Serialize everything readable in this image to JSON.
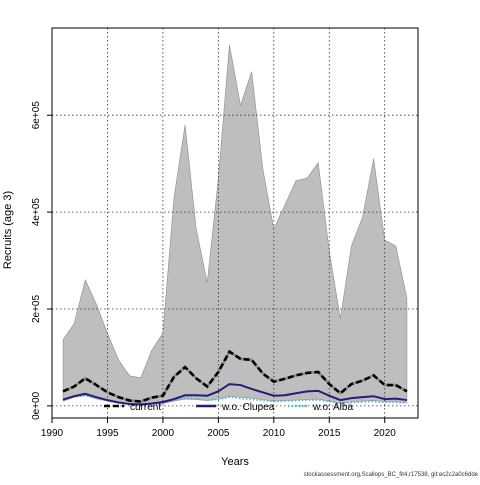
{
  "chart_data": {
    "type": "area",
    "xlabel": "Years",
    "ylabel": "Recruits (age 3)",
    "xlim": [
      1990,
      2023
    ],
    "ylim": [
      -25000,
      780000
    ],
    "x_ticks": [
      1990,
      1995,
      2000,
      2005,
      2010,
      2015,
      2020
    ],
    "y_ticks": [
      0,
      200000,
      400000,
      600000
    ],
    "y_tick_labels": [
      "0e+00",
      "2e+05",
      "4e+05",
      "6e+05"
    ],
    "grid": true,
    "grid_style": "dotted",
    "legend_position": "bottom-center",
    "x": [
      1991,
      1992,
      1993,
      1994,
      1995,
      1996,
      1997,
      1998,
      1999,
      2000,
      2001,
      2002,
      2003,
      2004,
      2005,
      2006,
      2007,
      2008,
      2009,
      2010,
      2011,
      2012,
      2013,
      2014,
      2015,
      2016,
      2017,
      2018,
      2019,
      2020,
      2021,
      2022
    ],
    "band": {
      "color": "#bebebe",
      "upper": [
        137000,
        170000,
        260000,
        210000,
        150000,
        95000,
        62000,
        58000,
        115000,
        150000,
        430000,
        580000,
        365000,
        255000,
        470000,
        745000,
        620000,
        690000,
        490000,
        365000,
        415000,
        465000,
        470000,
        502000,
        320000,
        180000,
        330000,
        390000,
        510000,
        342000,
        330000,
        222000
      ],
      "lower": [
        10000,
        18000,
        22000,
        15000,
        10000,
        6000,
        4000,
        3000,
        4000,
        5000,
        10000,
        14000,
        13000,
        11000,
        14000,
        20000,
        18000,
        16000,
        13000,
        10000,
        11000,
        12000,
        13000,
        14000,
        10000,
        5000,
        8000,
        10000,
        11000,
        9000,
        9000,
        7000
      ]
    },
    "series": [
      {
        "name": "current",
        "color": "#000000",
        "style": "dashed-thick",
        "values": [
          30000,
          40000,
          57000,
          43000,
          28000,
          18000,
          11000,
          9000,
          17000,
          21000,
          60000,
          80000,
          57000,
          40000,
          70000,
          112000,
          97000,
          95000,
          67000,
          50000,
          56000,
          63000,
          68000,
          70000,
          45000,
          26000,
          45000,
          52000,
          63000,
          43000,
          43000,
          30000
        ]
      },
      {
        "name": "w.o. Clupea",
        "color": "#2a1a7a",
        "style": "solid",
        "values": [
          13000,
          20000,
          25000,
          18000,
          12000,
          7000,
          4000,
          3000,
          5000,
          8000,
          14000,
          22000,
          22000,
          21000,
          30000,
          45000,
          43000,
          35000,
          28000,
          21000,
          22000,
          26000,
          30000,
          31000,
          21000,
          12000,
          16000,
          18000,
          20000,
          14000,
          15000,
          12000
        ]
      },
      {
        "name": "w.o. Alba",
        "color": "#4db8d6",
        "style": "dotted",
        "values": [
          11000,
          18000,
          21000,
          15000,
          10000,
          6000,
          3500,
          2500,
          4000,
          6000,
          12000,
          17000,
          15000,
          12000,
          13000,
          18000,
          15000,
          13000,
          11000,
          9000,
          10000,
          11000,
          12000,
          12000,
          9000,
          5000,
          7000,
          8000,
          9000,
          7000,
          7000,
          6000
        ]
      }
    ],
    "footer": "stockassessment.org,Scallops_BC_fit4,r17538, git:ec2c2a0c6dde"
  }
}
